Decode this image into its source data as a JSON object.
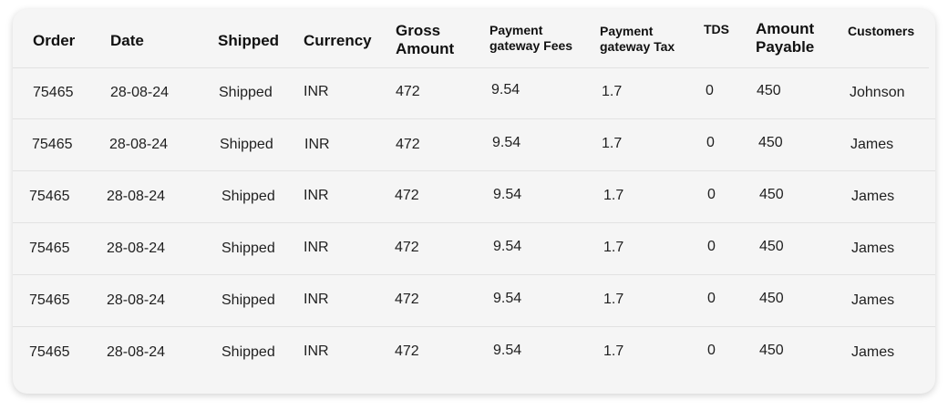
{
  "table": {
    "columns": [
      {
        "key": "order",
        "label": "Order"
      },
      {
        "key": "date",
        "label": "Date"
      },
      {
        "key": "shipped",
        "label": "Shipped"
      },
      {
        "key": "currency",
        "label": "Currency"
      },
      {
        "key": "gross",
        "label": "Gross Amount"
      },
      {
        "key": "pg_fees",
        "label": "Payment gateway Fees"
      },
      {
        "key": "pg_tax",
        "label": "Payment gateway Tax"
      },
      {
        "key": "tds",
        "label": "TDS"
      },
      {
        "key": "payable",
        "label": "Amount Payable"
      },
      {
        "key": "customers",
        "label": "Customers"
      }
    ],
    "rows": [
      {
        "order": "75465",
        "date": "28-08-24",
        "shipped": "Shipped",
        "currency": "INR",
        "gross": "472",
        "pg_fees": "9.54",
        "pg_tax": "1.7",
        "tds": "0",
        "payable": "450",
        "customers": "Johnson"
      },
      {
        "order": "75465",
        "date": "28-08-24",
        "shipped": "Shipped",
        "currency": "INR",
        "gross": "472",
        "pg_fees": "9.54",
        "pg_tax": "1.7",
        "tds": "0",
        "payable": "450",
        "customers": "James"
      },
      {
        "order": "75465",
        "date": "28-08-24",
        "shipped": "Shipped",
        "currency": "INR",
        "gross": "472",
        "pg_fees": "9.54",
        "pg_tax": "1.7",
        "tds": "0",
        "payable": "450",
        "customers": "James"
      },
      {
        "order": "75465",
        "date": "28-08-24",
        "shipped": "Shipped",
        "currency": "INR",
        "gross": "472",
        "pg_fees": "9.54",
        "pg_tax": "1.7",
        "tds": "0",
        "payable": "450",
        "customers": "James"
      },
      {
        "order": "75465",
        "date": "28-08-24",
        "shipped": "Shipped",
        "currency": "INR",
        "gross": "472",
        "pg_fees": "9.54",
        "pg_tax": "1.7",
        "tds": "0",
        "payable": "450",
        "customers": "James"
      },
      {
        "order": "75465",
        "date": "28-08-24",
        "shipped": "Shipped",
        "currency": "INR",
        "gross": "472",
        "pg_fees": "9.54",
        "pg_tax": "1.7",
        "tds": "0",
        "payable": "450",
        "customers": "James"
      }
    ]
  }
}
